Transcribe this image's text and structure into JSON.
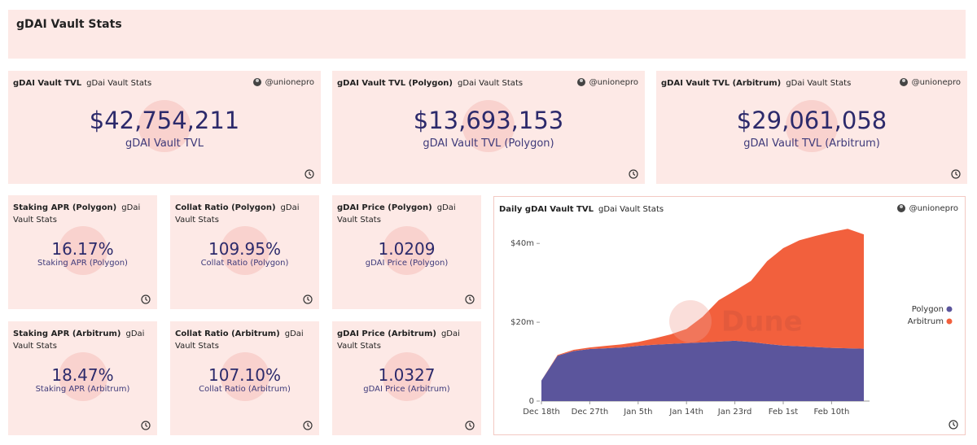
{
  "header": {
    "title": "gDAI Vault Stats"
  },
  "counters": [
    {
      "title": "gDAI Vault TVL",
      "subtitle": "gDai Vault Stats",
      "author": "@unionepro",
      "value": "$42,754,211",
      "label": "gDAI Vault TVL"
    },
    {
      "title": "gDAI Vault TVL (Polygon)",
      "subtitle": "gDai Vault Stats",
      "author": "@unionepro",
      "value": "$13,693,153",
      "label": "gDAI Vault TVL (Polygon)"
    },
    {
      "title": "gDAI Vault TVL (Arbitrum)",
      "subtitle": "gDai Vault Stats",
      "author": "@unionepro",
      "value": "$29,061,058",
      "label": "gDAI Vault TVL (Arbitrum)"
    },
    {
      "title": "Staking APR (Polygon)",
      "subtitle": "gDai Vault Stats",
      "value": "16.17%",
      "label": "Staking APR (Polygon)"
    },
    {
      "title": "Collat Ratio (Polygon)",
      "subtitle": "gDai Vault Stats",
      "value": "109.95%",
      "label": "Collat Ratio (Polygon)"
    },
    {
      "title": "gDAI Price (Polygon)",
      "subtitle": "gDai Vault Stats",
      "value": "1.0209",
      "label": "gDAI Price (Polygon)"
    },
    {
      "title": "Staking APR (Arbitrum)",
      "subtitle": "gDai Vault Stats",
      "value": "18.47%",
      "label": "Staking APR (Arbitrum)"
    },
    {
      "title": "Collat Ratio (Arbitrum)",
      "subtitle": "gDai Vault Stats",
      "value": "107.10%",
      "label": "Collat Ratio (Arbitrum)"
    },
    {
      "title": "gDAI Price (Arbitrum)",
      "subtitle": "gDai Vault Stats",
      "value": "1.0327",
      "label": "gDAI Price (Arbitrum)"
    }
  ],
  "chart_widget": {
    "title": "Daily gDAI Vault TVL",
    "subtitle": "gDai Vault Stats",
    "author": "@unionepro",
    "watermark": "Dune"
  },
  "chart_data": {
    "type": "area",
    "stacked": true,
    "x": [
      "Dec 18th",
      "Dec 21st",
      "Dec 24th",
      "Dec 27th",
      "Dec 30th",
      "Jan 2nd",
      "Jan 5th",
      "Jan 8th",
      "Jan 11th",
      "Jan 14th",
      "Jan 17th",
      "Jan 20th",
      "Jan 23rd",
      "Jan 26th",
      "Jan 29th",
      "Feb 1st",
      "Feb 4th",
      "Feb 7th",
      "Feb 10th",
      "Feb 13th",
      "Feb 16th"
    ],
    "xticks": [
      "Dec 18th",
      "Dec 27th",
      "Jan 5th",
      "Jan 14th",
      "Jan 23rd",
      "Feb 1st",
      "Feb 10th"
    ],
    "ylim": [
      0,
      45
    ],
    "yticks": [
      0,
      {
        "value": 20,
        "label": "$20m"
      },
      {
        "value": 40,
        "label": "$40m"
      }
    ],
    "legend": "right",
    "series": [
      {
        "name": "Polygon",
        "color": "#5b559c",
        "values": [
          5.2,
          11.5,
          12.7,
          13.2,
          13.4,
          13.6,
          14.0,
          14.3,
          14.5,
          14.7,
          14.9,
          15.1,
          15.3,
          15.0,
          14.5,
          14.1,
          13.9,
          13.7,
          13.5,
          13.4,
          13.3
        ]
      },
      {
        "name": "Arbitrum",
        "color": "#f2603d",
        "values": [
          0,
          0.2,
          0.3,
          0.4,
          0.6,
          0.8,
          1.0,
          1.6,
          2.4,
          3.6,
          6.5,
          10.5,
          12.7,
          15.5,
          21.0,
          24.7,
          26.9,
          28.2,
          29.4,
          30.3,
          29.0
        ]
      }
    ]
  }
}
